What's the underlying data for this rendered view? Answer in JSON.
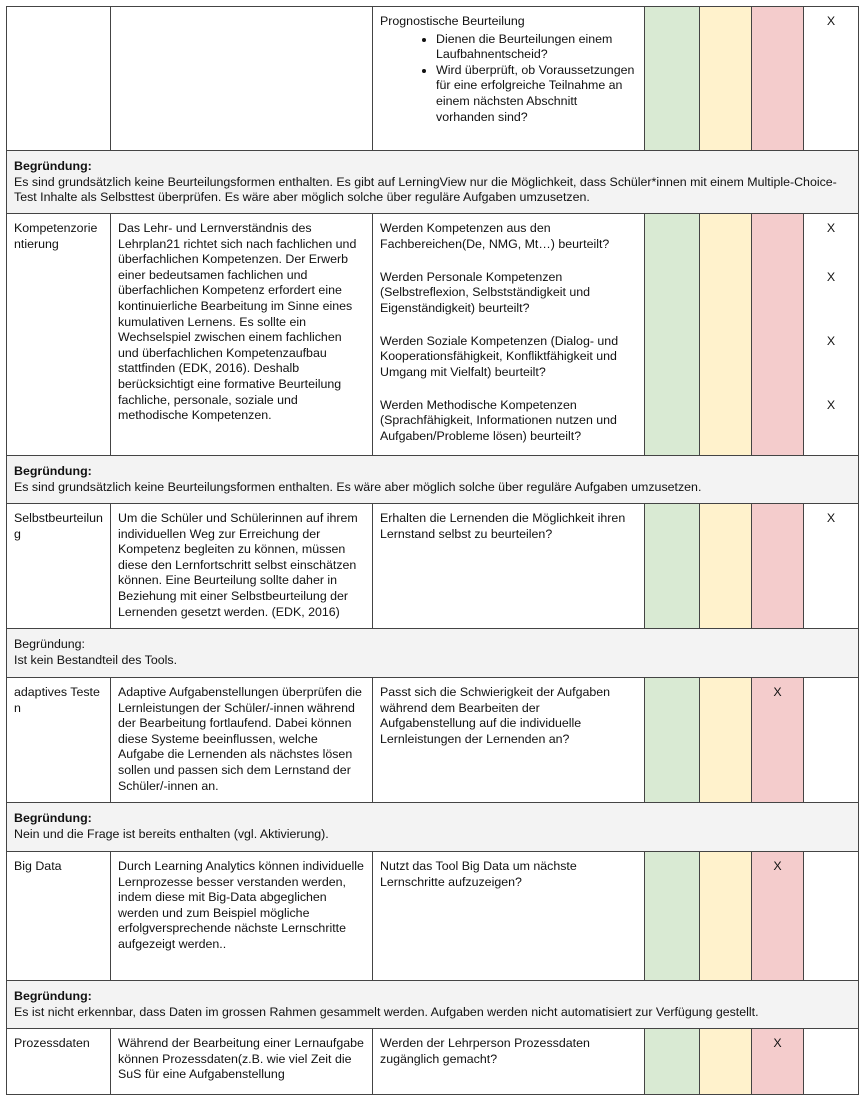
{
  "rows": [
    {
      "questions": [
        {
          "text": "Prognostische Beurteilung",
          "bullets": [
            "Dienen die Beurteilungen einem Laufbahnentscheid?",
            "Wird überprüft, ob Voraussetzungen für eine erfolgreiche Teilnahme an einem nächsten Abschnitt vorhanden sind?"
          ],
          "marks": [
            null,
            null,
            null,
            "X"
          ]
        }
      ]
    },
    {
      "label": "Begründung:",
      "bold": true,
      "text": "Es sind grundsätzlich keine Beurteilungsformen enthalten. Es gibt auf LerningView nur die Möglichkeit, dass Schüler*innen mit einem Multiple-Choice-Test Inhalte als Selbsttest überprüfen. Es wäre aber möglich solche über reguläre Aufgaben umzusetzen."
    },
    {
      "criterion": "Kompetenzorientierung",
      "description": "Das Lehr- und Lernverständnis des Lehrplan21 richtet sich nach fachlichen und überfachlichen Kompetenzen. Der Erwerb einer bedeutsamen fachlichen und überfachlichen Kompetenz erfordert eine kontinuierliche Bearbeitung im Sinne eines kumulativen Lernens. Es sollte ein Wechselspiel zwischen einem fachlichen und überfachlichen Kompetenzaufbau stattfinden (EDK, 2016). Deshalb berücksichtigt eine formative Beurteilung fachliche, personale, soziale und methodische Kompetenzen.",
      "questions": [
        {
          "text": "Werden Kompetenzen aus den Fachbereichen(De, NMG, Mt…) beurteilt?",
          "marks": [
            null,
            null,
            null,
            "X"
          ]
        },
        {
          "text": "Werden Personale Kompetenzen (Selbstreflexion, Selbstständigkeit und Eigenständigkeit) beurteilt?",
          "marks": [
            null,
            null,
            null,
            "X"
          ]
        },
        {
          "text": "Werden Soziale Kompetenzen (Dialog- und Kooperationsfähigkeit, Konfliktfähigkeit und Umgang mit Vielfalt) beurteilt?",
          "marks": [
            null,
            null,
            null,
            "X"
          ]
        },
        {
          "text": "Werden Methodische Kompetenzen (Sprachfähigkeit, Informationen nutzen und Aufgaben/Probleme lösen) beurteilt?",
          "marks": [
            null,
            null,
            null,
            "X"
          ]
        }
      ]
    },
    {
      "label": "Begründung:",
      "bold": true,
      "text": "Es sind grundsätzlich keine Beurteilungsformen enthalten. Es wäre aber möglich solche über reguläre Aufgaben umzusetzen."
    },
    {
      "criterion": "Selbstbeurteilung",
      "description": "Um die Schüler und Schülerinnen auf ihrem individuellen Weg zur Erreichung der Kompetenz begleiten zu können, müssen diese den Lernfortschritt selbst einschätzen können. Eine Beurteilung sollte daher in Beziehung mit einer Selbstbeurteilung der Lernenden gesetzt werden. (EDK, 2016)",
      "questions": [
        {
          "text": "Erhalten die Lernenden die Möglichkeit ihren Lernstand selbst zu beurteilen?",
          "marks": [
            null,
            null,
            null,
            "X"
          ]
        }
      ]
    },
    {
      "label": "Begründung:",
      "bold": false,
      "text": "Ist kein Bestandteil des Tools."
    },
    {
      "criterion": "adaptives Testen",
      "description": "Adaptive Aufgabenstellungen überprüfen die Lernleistungen der Schüler/-innen während der Bearbeitung fortlaufend. Dabei können diese Systeme beeinflussen, welche Aufgabe die Lernenden als nächstes lösen sollen und passen sich dem Lernstand der Schüler/-innen an.",
      "questions": [
        {
          "text": "Passt sich die Schwierigkeit der Aufgaben während dem Bearbeiten der Aufgabenstellung auf die individuelle Lernleistungen der Lernenden an?",
          "marks": [
            null,
            null,
            "X",
            null
          ]
        }
      ]
    },
    {
      "label": "Begründung:",
      "bold": true,
      "text": "Nein und die Frage ist bereits enthalten (vgl. Aktivierung)."
    },
    {
      "criterion": "Big Data",
      "description": "Durch Learning Analytics können individuelle Lernprozesse besser verstanden werden, indem diese mit Big-Data abgeglichen werden und zum Beispiel mögliche erfolgversprechende nächste Lernschritte aufgezeigt werden..",
      "questions": [
        {
          "text": "Nutzt das Tool Big Data um nächste Lernschritte aufzuzeigen?",
          "marks": [
            null,
            null,
            "X",
            null
          ]
        }
      ]
    },
    {
      "label": "Begründung:",
      "bold": true,
      "text": "Es ist nicht erkennbar, dass Daten im grossen Rahmen gesammelt werden. Aufgaben werden nicht automatisiert zur Verfügung gestellt."
    },
    {
      "criterion": "Prozessdaten",
      "description": "Während der Bearbeitung einer Lernaufgabe können Prozessdaten(z.B. wie viel Zeit die SuS für eine Aufgabenstellung",
      "questions": [
        {
          "text": "Werden der Lehrperson Prozessdaten zugänglich gemacht?",
          "marks": [
            null,
            null,
            "X",
            null
          ]
        }
      ]
    }
  ]
}
